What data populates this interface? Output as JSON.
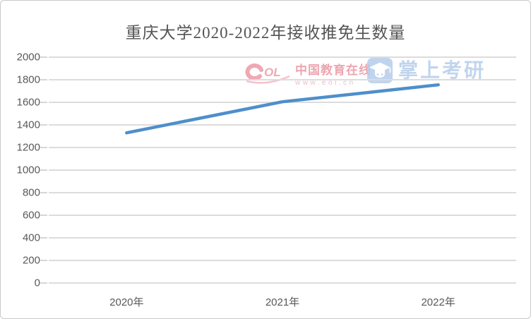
{
  "chart_data": {
    "type": "line",
    "title": "重庆大学2020-2022年接收推免生数量",
    "categories": [
      "2020年",
      "2021年",
      "2022年"
    ],
    "values": [
      1330,
      1605,
      1755
    ],
    "xlabel": "",
    "ylabel": "",
    "ylim": [
      0,
      2000
    ],
    "ytick_step": 200,
    "yticks": [
      0,
      200,
      400,
      600,
      800,
      1000,
      1200,
      1400,
      1600,
      1800,
      2000
    ],
    "grid": true,
    "legend": "none",
    "line_color": "#4e8fca",
    "gridline_color": "#dcdcdc",
    "axis_text_color": "#595959"
  },
  "watermarks": {
    "eol": {
      "logo_text": "OL",
      "name": "中国教育在线",
      "url": "www.eol.cn",
      "color": "#e8919e"
    },
    "zsky": {
      "text": "掌上考研",
      "color": "#b6cdec"
    }
  }
}
